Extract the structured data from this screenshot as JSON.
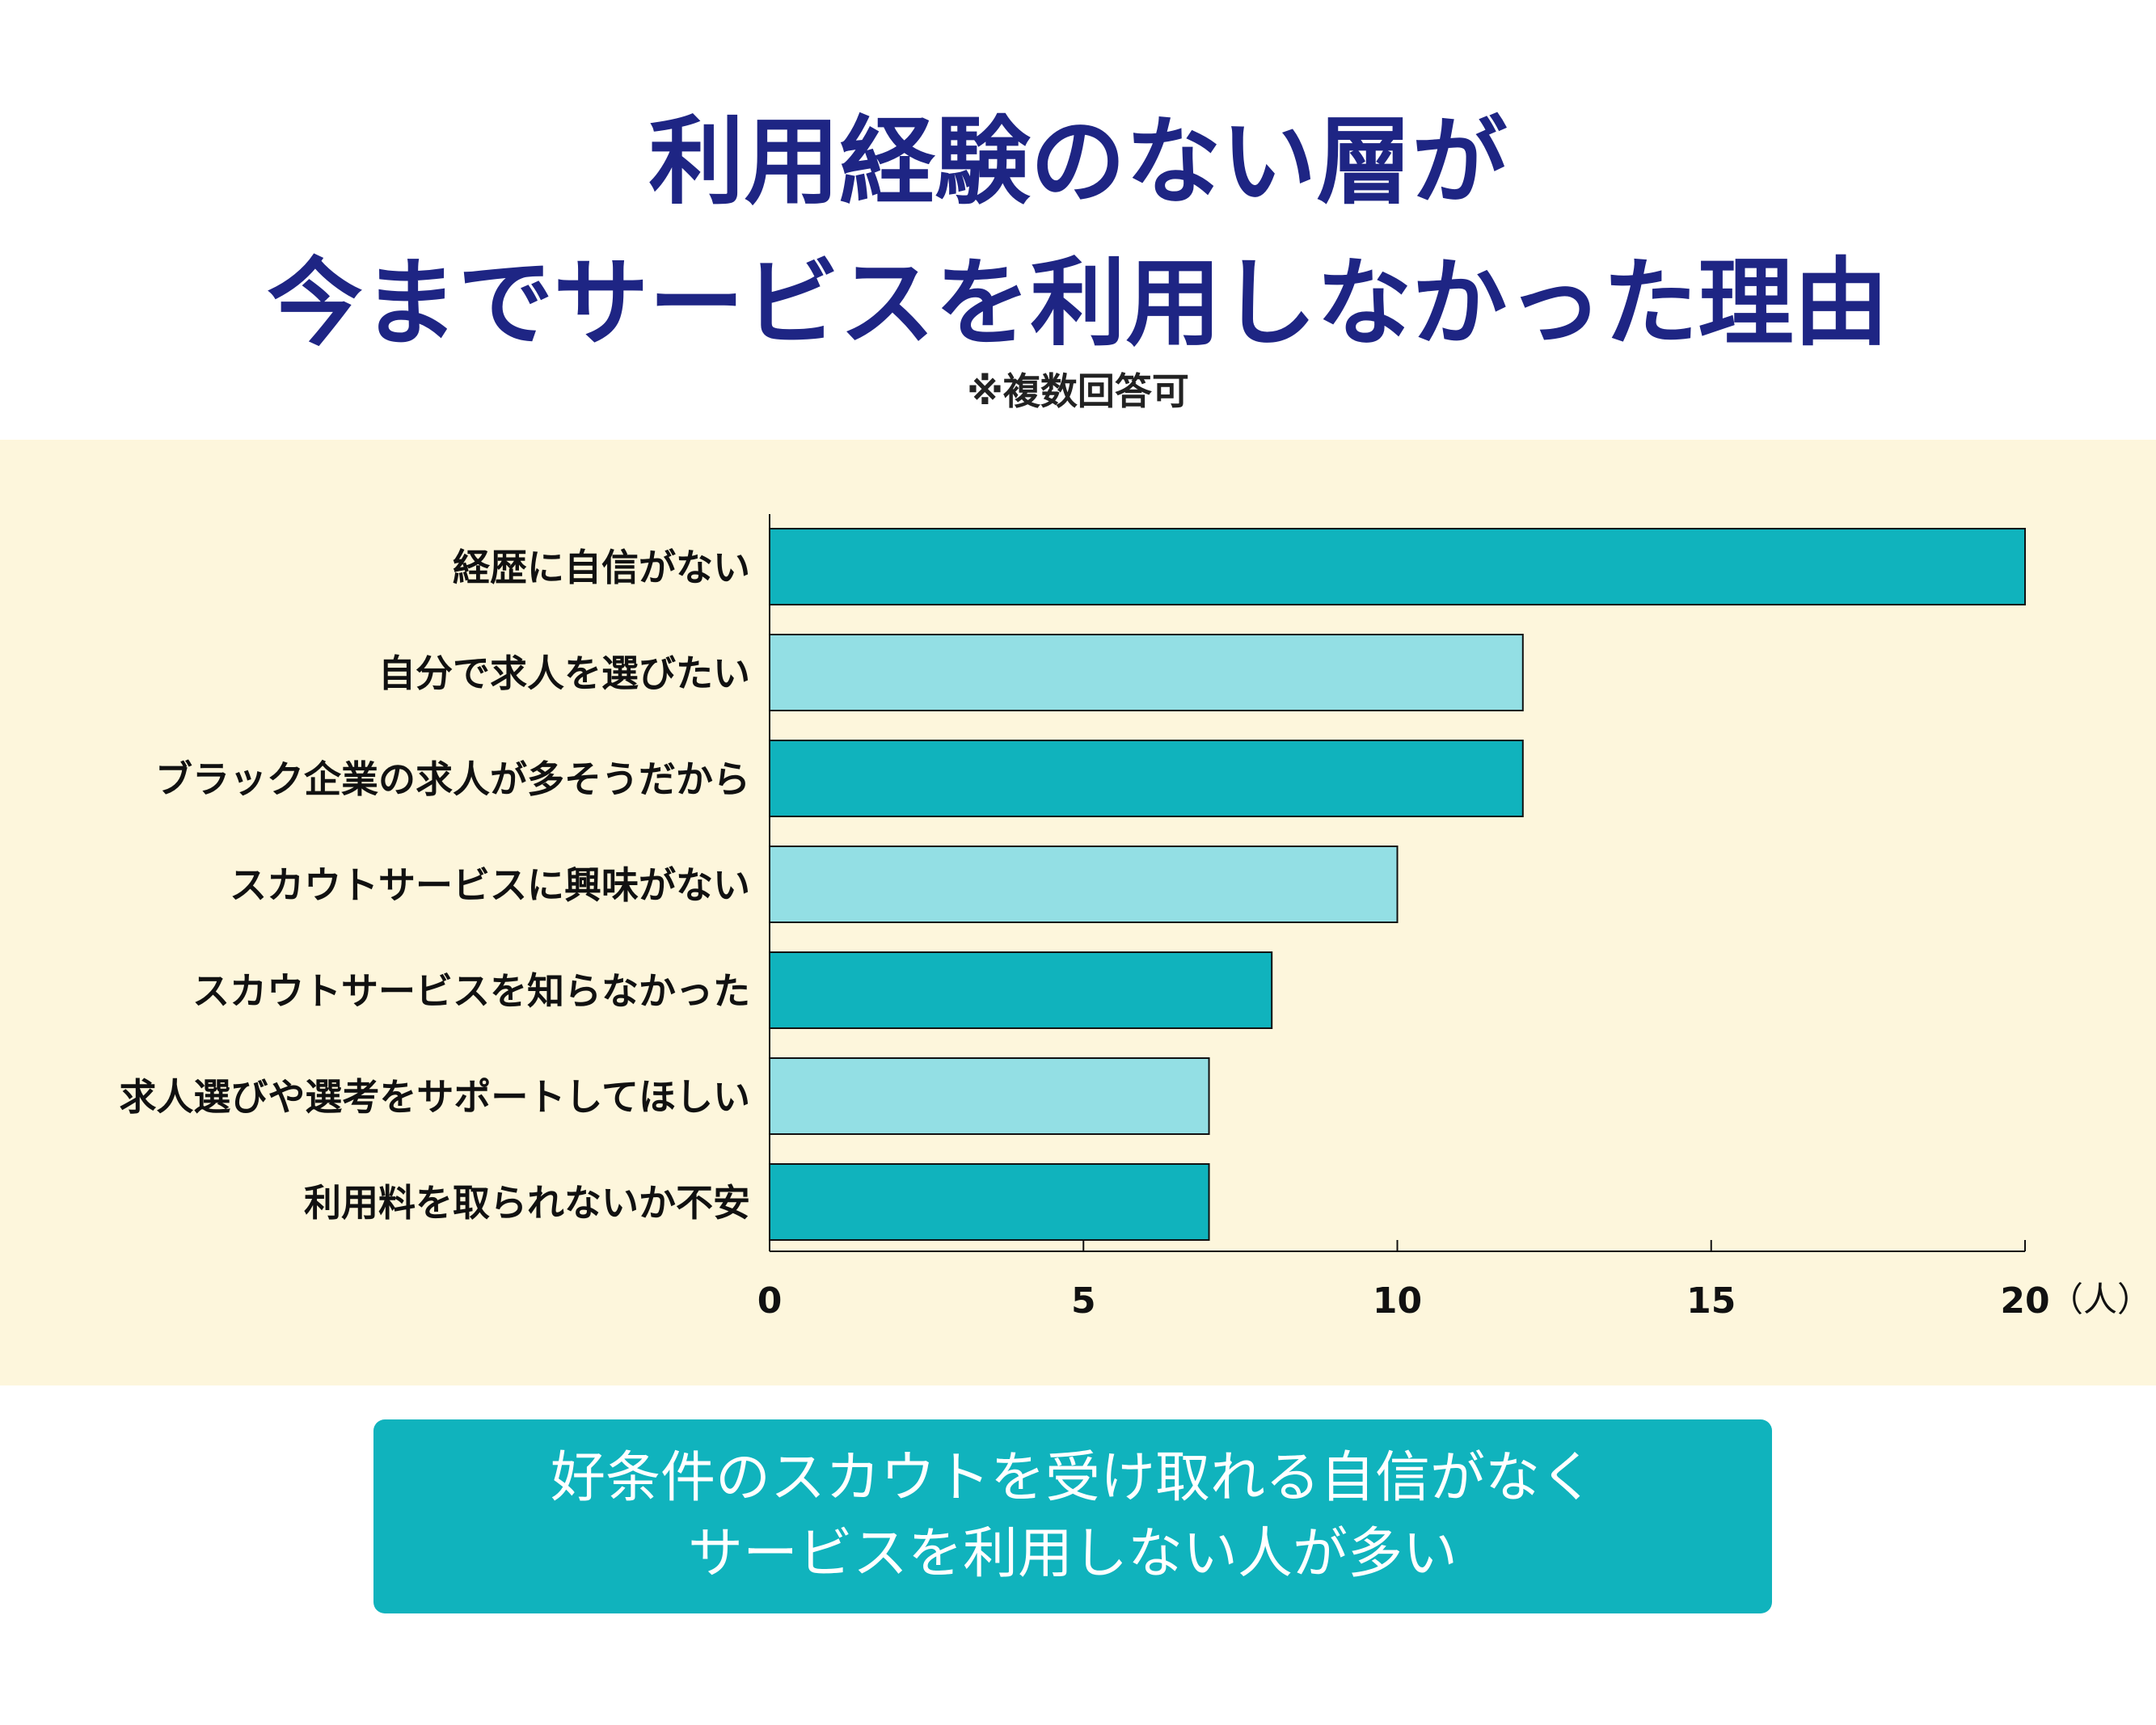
{
  "title": {
    "line1": "利用経験のない層が",
    "line2": "今までサービスを利用しなかった理由"
  },
  "note": "※複数回答可",
  "chart_data": {
    "type": "bar",
    "orientation": "horizontal",
    "categories": [
      "経歴に自信がない",
      "自分で求人を選びたい",
      "ブラック企業の求人が多そうだから",
      "スカウトサービスに興味がない",
      "スカウトサービスを知らなかった",
      "求人選びや選考をサポートしてほしい",
      "利用料を取られないか不安"
    ],
    "values": [
      20,
      12,
      12,
      10,
      8,
      7,
      7
    ],
    "xlim": [
      0,
      20
    ],
    "xticks": [
      "0",
      "5",
      "10",
      "15",
      "20"
    ],
    "unit": "（人）",
    "colors": [
      "#10b3bd",
      "#93dfe4"
    ],
    "grid": false
  },
  "summary": {
    "line1": "好条件のスカウトを受け取れる自信がなく",
    "line2": "サービスを利用しない人が多い"
  }
}
